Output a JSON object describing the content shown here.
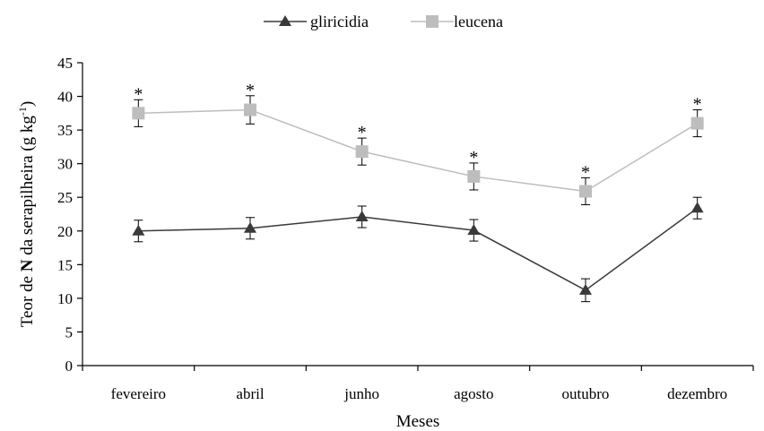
{
  "chart_data": {
    "type": "line",
    "title": "",
    "xlabel": "Meses",
    "ylabel": "Teor de N da serapilheira (g kg-1)",
    "ylabel_parts": {
      "prefix": "Teor de ",
      "bold": "N",
      "middle": " da serapilheira (g kg",
      "superscript": "-1",
      "suffix": ")"
    },
    "categories": [
      "fevereiro",
      "abril",
      "junho",
      "agosto",
      "outubro",
      "dezembro"
    ],
    "ylim": [
      0,
      45
    ],
    "yticks": [
      0,
      5,
      10,
      15,
      20,
      25,
      30,
      35,
      40,
      45
    ],
    "grid": false,
    "legend": "top-center",
    "series": [
      {
        "name": "gliricidia",
        "marker": "triangle",
        "color": "#3a3a3a",
        "values": [
          20.0,
          20.4,
          22.1,
          20.1,
          11.2,
          23.4
        ],
        "errors": [
          1.6,
          1.6,
          1.6,
          1.6,
          1.7,
          1.6
        ]
      },
      {
        "name": "leucena",
        "marker": "square",
        "color": "#bdbdbd",
        "values": [
          37.5,
          38.0,
          31.8,
          28.1,
          25.9,
          36.0
        ],
        "errors": [
          2.0,
          2.1,
          2.0,
          2.0,
          2.0,
          2.0
        ]
      }
    ],
    "annotations": {
      "symbol": "*",
      "categories": [
        "fevereiro",
        "abril",
        "junho",
        "agosto",
        "outubro",
        "dezembro"
      ]
    }
  }
}
